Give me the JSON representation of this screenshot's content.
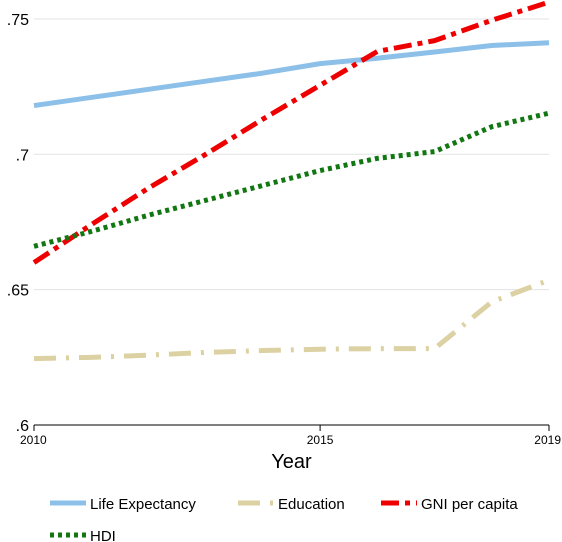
{
  "chart_data": {
    "type": "line",
    "title": "",
    "xlabel": "Year",
    "ylabel": "",
    "x": [
      2010,
      2011,
      2012,
      2013,
      2014,
      2015,
      2016,
      2017,
      2018,
      2019
    ],
    "xlim": [
      2010,
      2019
    ],
    "ylim": [
      0.6,
      0.757
    ],
    "x_ticks": [
      {
        "value": 2010,
        "label": "2010"
      },
      {
        "value": 2015,
        "label": "2015"
      },
      {
        "value": 2019,
        "label": "2019"
      }
    ],
    "y_ticks": [
      {
        "value": 0.6,
        "label": ".6"
      },
      {
        "value": 0.65,
        "label": ".65"
      },
      {
        "value": 0.7,
        "label": ".7"
      },
      {
        "value": 0.75,
        "label": ".75"
      }
    ],
    "grid": true,
    "legend_position": "bottom",
    "series": [
      {
        "name": "Life Expectancy",
        "color": "#8cc0e8",
        "dash": "solid",
        "values": [
          0.718,
          0.721,
          0.724,
          0.727,
          0.73,
          0.7335,
          0.7355,
          0.7378,
          0.7402,
          0.7412
        ]
      },
      {
        "name": "Education",
        "color": "#dcd1a3",
        "dash": "long-dash-dot",
        "values": [
          0.6245,
          0.625,
          0.6258,
          0.6268,
          0.6275,
          0.628,
          0.6282,
          0.6282,
          0.6455,
          0.6535
        ]
      },
      {
        "name": "GNI per capita",
        "color": "#ee0000",
        "dash": "dash-dot",
        "values": [
          0.66,
          0.674,
          0.6875,
          0.7,
          0.713,
          0.7255,
          0.738,
          0.742,
          0.7495,
          0.7562
        ]
      },
      {
        "name": "HDI",
        "color": "#117711",
        "dash": "dotted",
        "values": [
          0.666,
          0.6715,
          0.6775,
          0.683,
          0.6885,
          0.694,
          0.6985,
          0.701,
          0.7102,
          0.7152
        ]
      }
    ]
  }
}
